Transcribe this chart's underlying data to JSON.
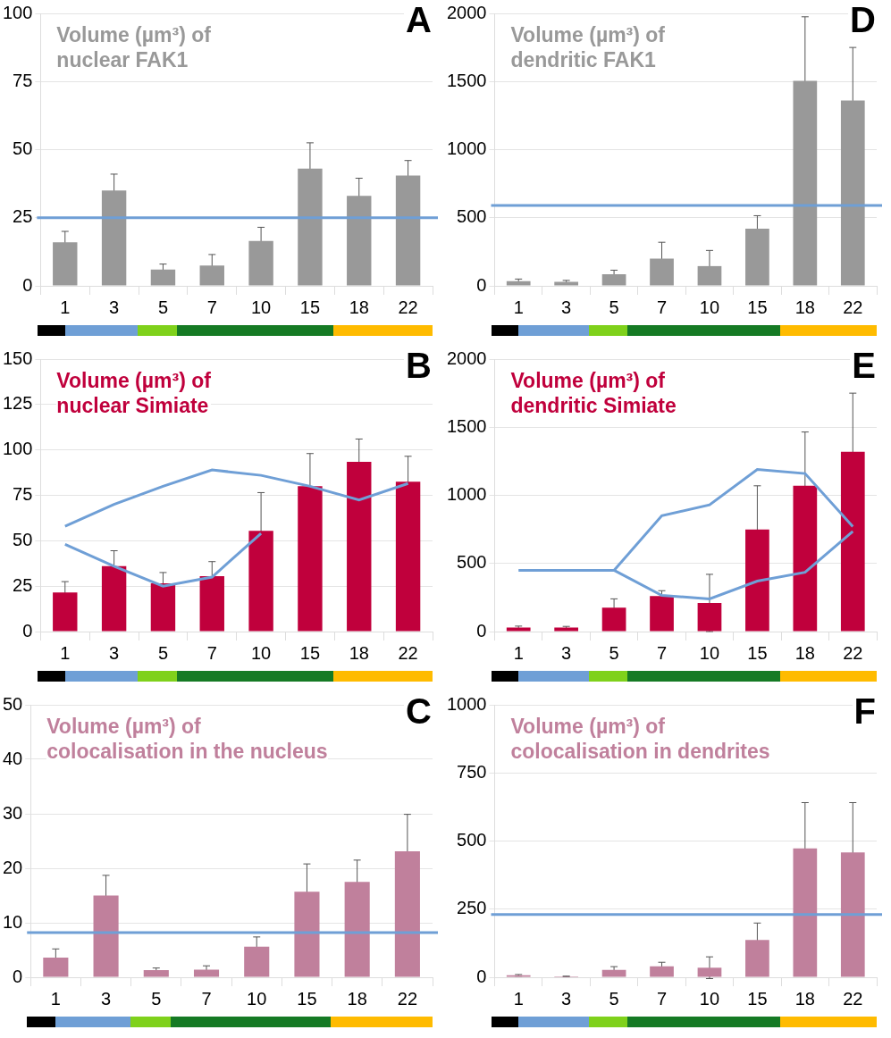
{
  "chart_data": [
    {
      "type": "bar",
      "title": "Volume (µm³) of\nnuclear FAK1",
      "annotations": [
        "A"
      ],
      "categories": [
        "1",
        "3",
        "5",
        "7",
        "10",
        "15",
        "18",
        "22"
      ],
      "values": [
        16,
        35,
        6,
        7.5,
        16.5,
        43,
        33,
        40.5
      ],
      "errors": [
        4,
        6,
        2,
        4,
        5,
        9.5,
        6.5,
        5.5
      ],
      "color": "#999999",
      "ylim": [
        0,
        100
      ],
      "yticks": [
        0,
        25,
        50,
        75,
        100
      ],
      "grid": "y",
      "ref_lines": [
        {
          "axis": "y",
          "value": 25,
          "color": "#6f9fd6"
        }
      ]
    },
    {
      "type": "bar",
      "title": "Volume (µm³) of\ndendritic FAK1",
      "annotations": [
        "D"
      ],
      "categories": [
        "1",
        "3",
        "5",
        "7",
        "10",
        "15",
        "18",
        "22"
      ],
      "values": [
        35,
        30,
        85,
        200,
        145,
        420,
        1505,
        1360
      ],
      "errors": [
        15,
        10,
        30,
        120,
        115,
        95,
        470,
        390
      ],
      "color": "#999999",
      "ylim": [
        0,
        2000
      ],
      "yticks": [
        0,
        500,
        1000,
        1500,
        2000
      ],
      "grid": "y",
      "ref_lines": [
        {
          "axis": "y",
          "value": 590,
          "color": "#6f9fd6"
        }
      ]
    },
    {
      "type": "bar",
      "title": "Volume (µm³) of\nnuclear Simiate",
      "annotations": [
        "B"
      ],
      "categories": [
        "1",
        "3",
        "5",
        "7",
        "10",
        "15",
        "18",
        "22"
      ],
      "ylim": [
        0,
        150
      ],
      "yticks": [
        0,
        25,
        50,
        75,
        100,
        125,
        150
      ],
      "grid": "y",
      "marker": "none",
      "series": [
        {
          "type": "bar",
          "color": "#c0003c",
          "values": [
            21.5,
            36,
            26.5,
            30.5,
            55.5,
            80,
            93.5,
            82.5
          ],
          "errors": [
            6,
            8.5,
            6,
            8,
            21,
            18,
            12.5,
            14
          ]
        },
        {
          "type": "line",
          "color": "#6f9fd6",
          "values": [
            58,
            70,
            80,
            89,
            86,
            80,
            72.5,
            81.5
          ]
        },
        {
          "type": "line",
          "color": "#6f9fd6",
          "values": [
            48,
            36,
            25,
            30,
            54,
            null,
            null,
            null
          ]
        }
      ]
    },
    {
      "type": "bar",
      "title": "Volume (µm³) of\ndendritic Simiate",
      "annotations": [
        "E"
      ],
      "categories": [
        "1",
        "3",
        "5",
        "7",
        "10",
        "15",
        "18",
        "22"
      ],
      "ylim": [
        0,
        2000
      ],
      "yticks": [
        0,
        500,
        1000,
        1500,
        2000
      ],
      "grid": "y",
      "marker": "none",
      "series": [
        {
          "type": "bar",
          "color": "#c0003c",
          "values": [
            30,
            30,
            175,
            260,
            210,
            750,
            1070,
            1320
          ],
          "errors": [
            10,
            8,
            65,
            40,
            210,
            320,
            395,
            430
          ]
        },
        {
          "type": "line",
          "color": "#6f9fd6",
          "values": [
            450,
            450,
            450,
            850,
            930,
            1190,
            1160,
            770
          ]
        },
        {
          "type": "line",
          "color": "#6f9fd6",
          "values": [
            null,
            null,
            450,
            265,
            240,
            370,
            435,
            735
          ]
        }
      ]
    },
    {
      "type": "bar",
      "title": "Volume (µm³) of\ncolocalisation in the nucleus",
      "annotations": [
        "C"
      ],
      "categories": [
        "1",
        "3",
        "5",
        "7",
        "10",
        "15",
        "18",
        "22"
      ],
      "values": [
        3.6,
        15,
        1.3,
        1.4,
        5.6,
        15.7,
        17.5,
        23.1
      ],
      "errors": [
        1.6,
        3.7,
        0.4,
        0.7,
        1.8,
        5.1,
        4,
        6.8
      ],
      "color": "#c0809c",
      "ylim": [
        0,
        50
      ],
      "yticks": [
        0,
        10,
        20,
        30,
        40,
        50
      ],
      "grid": "y",
      "ref_lines": [
        {
          "axis": "y",
          "value": 8.2,
          "color": "#6f9fd6"
        }
      ]
    },
    {
      "type": "bar",
      "title": "Volume (µm³) of\ncolocalisation in dendrites",
      "annotations": [
        "F"
      ],
      "categories": [
        "1",
        "3",
        "5",
        "7",
        "10",
        "15",
        "18",
        "22"
      ],
      "values": [
        7,
        3,
        27,
        40,
        35,
        137,
        473,
        458
      ],
      "errors": [
        3,
        1,
        12,
        15,
        40,
        62,
        168,
        183
      ],
      "color": "#c0809c",
      "ylim": [
        0,
        1000
      ],
      "yticks": [
        0,
        250,
        500,
        750,
        1000
      ],
      "grid": "y",
      "ref_lines": [
        {
          "axis": "y",
          "value": 230,
          "color": "#6f9fd6"
        }
      ]
    }
  ]
}
